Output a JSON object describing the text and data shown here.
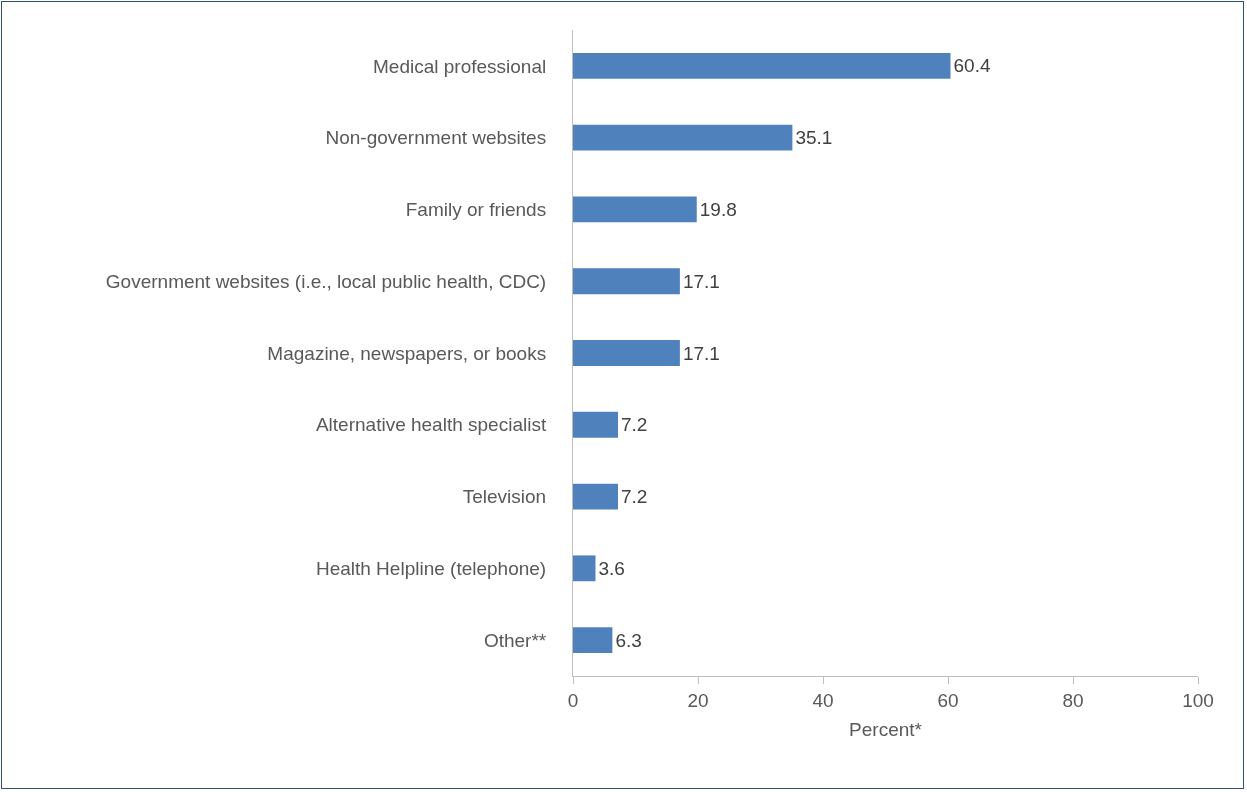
{
  "chart_data": {
    "type": "bar",
    "orientation": "horizontal",
    "categories": [
      "Medical professional",
      "Non-government websites",
      "Family or friends",
      "Government websites (i.e., local public health, CDC)",
      "Magazine, newspapers, or books",
      "Alternative health specialist",
      "Television",
      "Health Helpline (telephone)",
      "Other**"
    ],
    "values": [
      60.4,
      35.1,
      19.8,
      17.1,
      17.1,
      7.2,
      7.2,
      3.6,
      6.3
    ],
    "color": "#4f81bd",
    "xlim": [
      0,
      100
    ],
    "xticks": [
      0,
      20,
      40,
      60,
      80,
      100
    ],
    "xlabel": "Percent*",
    "data_labels": true,
    "grid": false,
    "legend": false
  }
}
